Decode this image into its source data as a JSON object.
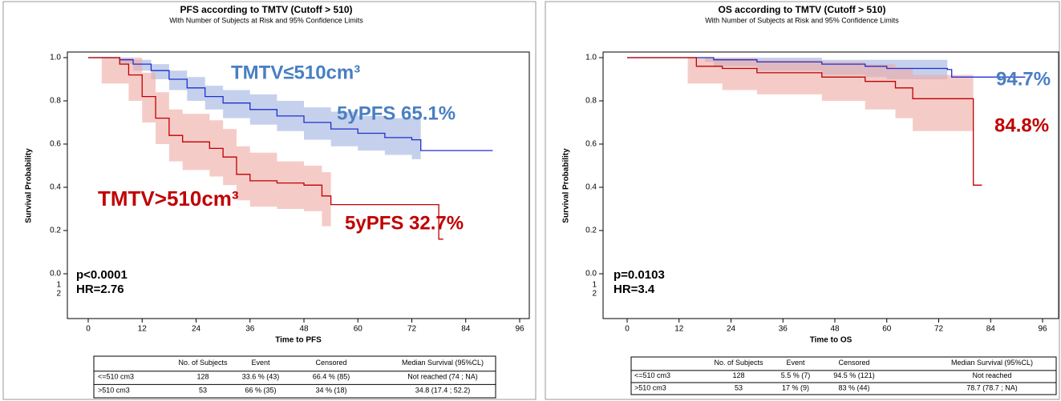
{
  "chart_data": [
    {
      "type": "line",
      "step": true,
      "title": "PFS according to TMTV (Cutoff > 510)",
      "subtitle": "With Number of Subjects at Risk and 95% Confidence Limits",
      "ylabel": "Survival Probability",
      "xlabel": "Time to PFS",
      "xlim": [
        0,
        96
      ],
      "ylim": [
        0,
        1
      ],
      "xticks": [
        0,
        12,
        24,
        36,
        48,
        60,
        72,
        84,
        96
      ],
      "yticks": [
        {
          "value": 0,
          "label": "0.0"
        },
        {
          "value": 0.2,
          "label": "0.2"
        },
        {
          "value": 0.4,
          "label": "0.4"
        },
        {
          "value": 0.6,
          "label": "0.6"
        },
        {
          "value": 0.8,
          "label": "0.8"
        },
        {
          "value": 1,
          "label": "1.0"
        }
      ],
      "risk_rows": [
        "1",
        "2"
      ],
      "series": [
        {
          "name": "<=510 cm3",
          "color": "#1f2fd0",
          "band_color": "#9fb2e0",
          "x": [
            0,
            3,
            7,
            10,
            14,
            18,
            22,
            26,
            30,
            36,
            42,
            48,
            54,
            60,
            66,
            72,
            74,
            90
          ],
          "values": [
            1,
            1,
            0.99,
            0.97,
            0.94,
            0.9,
            0.86,
            0.82,
            0.79,
            0.76,
            0.73,
            0.7,
            0.67,
            0.65,
            0.63,
            0.62,
            0.57,
            0.57
          ],
          "lower": [
            1,
            1,
            0.97,
            0.94,
            0.9,
            0.85,
            0.8,
            0.76,
            0.72,
            0.69,
            0.66,
            0.62,
            0.59,
            0.57,
            0.55,
            0.53,
            null,
            null
          ],
          "upper": [
            1,
            1,
            1,
            0.99,
            0.97,
            0.94,
            0.91,
            0.87,
            0.85,
            0.83,
            0.8,
            0.77,
            0.75,
            0.73,
            0.72,
            0.72,
            null,
            null
          ]
        },
        {
          "name": ">510 cm3",
          "color": "#c00000",
          "band_color": "#eea8a4",
          "x": [
            0,
            3,
            7,
            9,
            12,
            15,
            18,
            21,
            27,
            30,
            33,
            36,
            42,
            48,
            52,
            54,
            78,
            79
          ],
          "values": [
            1,
            1,
            0.97,
            0.92,
            0.82,
            0.72,
            0.64,
            0.61,
            0.58,
            0.54,
            0.46,
            0.43,
            0.42,
            0.41,
            0.36,
            0.32,
            0.16,
            0.16
          ],
          "lower": [
            null,
            0.88,
            0.88,
            0.8,
            0.7,
            0.6,
            0.52,
            0.48,
            0.45,
            0.41,
            0.34,
            0.31,
            0.3,
            0.29,
            0.22,
            null,
            null,
            null
          ],
          "upper": [
            null,
            1,
            1,
            1,
            0.93,
            0.84,
            0.76,
            0.74,
            0.71,
            0.67,
            0.59,
            0.56,
            0.52,
            0.5,
            0.47,
            null,
            null,
            null
          ]
        }
      ],
      "annotations": [
        {
          "text": "TMTV≤510cm³",
          "color": "#4a7fc1"
        },
        {
          "text": "5yPFS 65.1%",
          "color": "#4a7fc1"
        },
        {
          "text": "TMTV>510cm³",
          "color": "#c00000"
        },
        {
          "text": "5yPFS 32.7%",
          "color": "#c00000"
        },
        {
          "text": "p<0.0001",
          "color": "#000000"
        },
        {
          "text": "HR=2.76",
          "color": "#000000"
        }
      ],
      "table": {
        "header": [
          "No. of Subjects",
          "Event",
          "Censored",
          "Median Survival (95%CL)"
        ],
        "rows": [
          [
            "<=510 cm3",
            "128",
            "33.6 % (43)",
            "66.4 % (85)",
            "Not reached (74 ; NA)"
          ],
          [
            ">510 cm3",
            "53",
            "66 % (35)",
            "34 % (18)",
            "34.8 (17.4 ; 52.2)"
          ]
        ]
      }
    },
    {
      "type": "line",
      "step": true,
      "title": "OS according to TMTV (Cutoff > 510)",
      "subtitle": "With Number of Subjects at Risk and 95% Confidence Limits",
      "ylabel": "Survival Probability",
      "xlabel": "Time to OS",
      "xlim": [
        0,
        96
      ],
      "ylim": [
        0,
        1
      ],
      "xticks": [
        0,
        12,
        24,
        36,
        48,
        60,
        72,
        84,
        96
      ],
      "yticks": [
        {
          "value": 0,
          "label": "0.0"
        },
        {
          "value": 0.2,
          "label": "0.2"
        },
        {
          "value": 0.4,
          "label": "0.4"
        },
        {
          "value": 0.6,
          "label": "0.6"
        },
        {
          "value": 0.8,
          "label": "0.8"
        },
        {
          "value": 1,
          "label": "1.0"
        }
      ],
      "risk_rows": [
        "1",
        "2"
      ],
      "series": [
        {
          "name": "<=510 cm3",
          "color": "#1f2fd0",
          "band_color": "#9fb2e0",
          "x": [
            0,
            18,
            20,
            30,
            45,
            55,
            60,
            74,
            75,
            92
          ],
          "values": [
            1,
            1,
            0.99,
            0.98,
            0.97,
            0.96,
            0.95,
            0.945,
            0.91,
            0.91
          ],
          "lower": [
            1,
            0.98,
            0.96,
            0.94,
            0.92,
            0.91,
            0.9,
            null,
            null,
            null
          ],
          "upper": [
            1,
            1,
            1,
            1,
            0.99,
            0.99,
            0.99,
            null,
            null,
            null
          ]
        },
        {
          "name": ">510 cm3",
          "color": "#c00000",
          "band_color": "#eea8a4",
          "x": [
            0,
            14,
            16,
            22,
            30,
            45,
            55,
            62,
            66,
            80,
            82
          ],
          "values": [
            1,
            1,
            0.96,
            0.95,
            0.93,
            0.91,
            0.89,
            0.86,
            0.81,
            0.41,
            0.41
          ],
          "lower": [
            null,
            0.88,
            0.88,
            0.85,
            0.83,
            0.8,
            0.76,
            0.72,
            0.66,
            null,
            null
          ],
          "upper": [
            null,
            1,
            1,
            1,
            0.99,
            0.98,
            0.97,
            0.95,
            0.92,
            null,
            null
          ]
        }
      ],
      "annotations": [
        {
          "text": "94.7%",
          "color": "#4a7fc1"
        },
        {
          "text": "84.8%",
          "color": "#c00000"
        },
        {
          "text": "p=0.0103",
          "color": "#000000"
        },
        {
          "text": "HR=3.4",
          "color": "#000000"
        }
      ],
      "table": {
        "header": [
          "No. of Subjects",
          "Event",
          "Censored",
          "Median Survival (95%CL)"
        ],
        "rows": [
          [
            "<=510 cm3",
            "128",
            "5.5 % (7)",
            "94.5 % (121)",
            "Not reached"
          ],
          [
            ">510 cm3",
            "53",
            "17 % (9)",
            "83 % (44)",
            "78.7 (78.7 ; NA)"
          ]
        ]
      }
    }
  ]
}
